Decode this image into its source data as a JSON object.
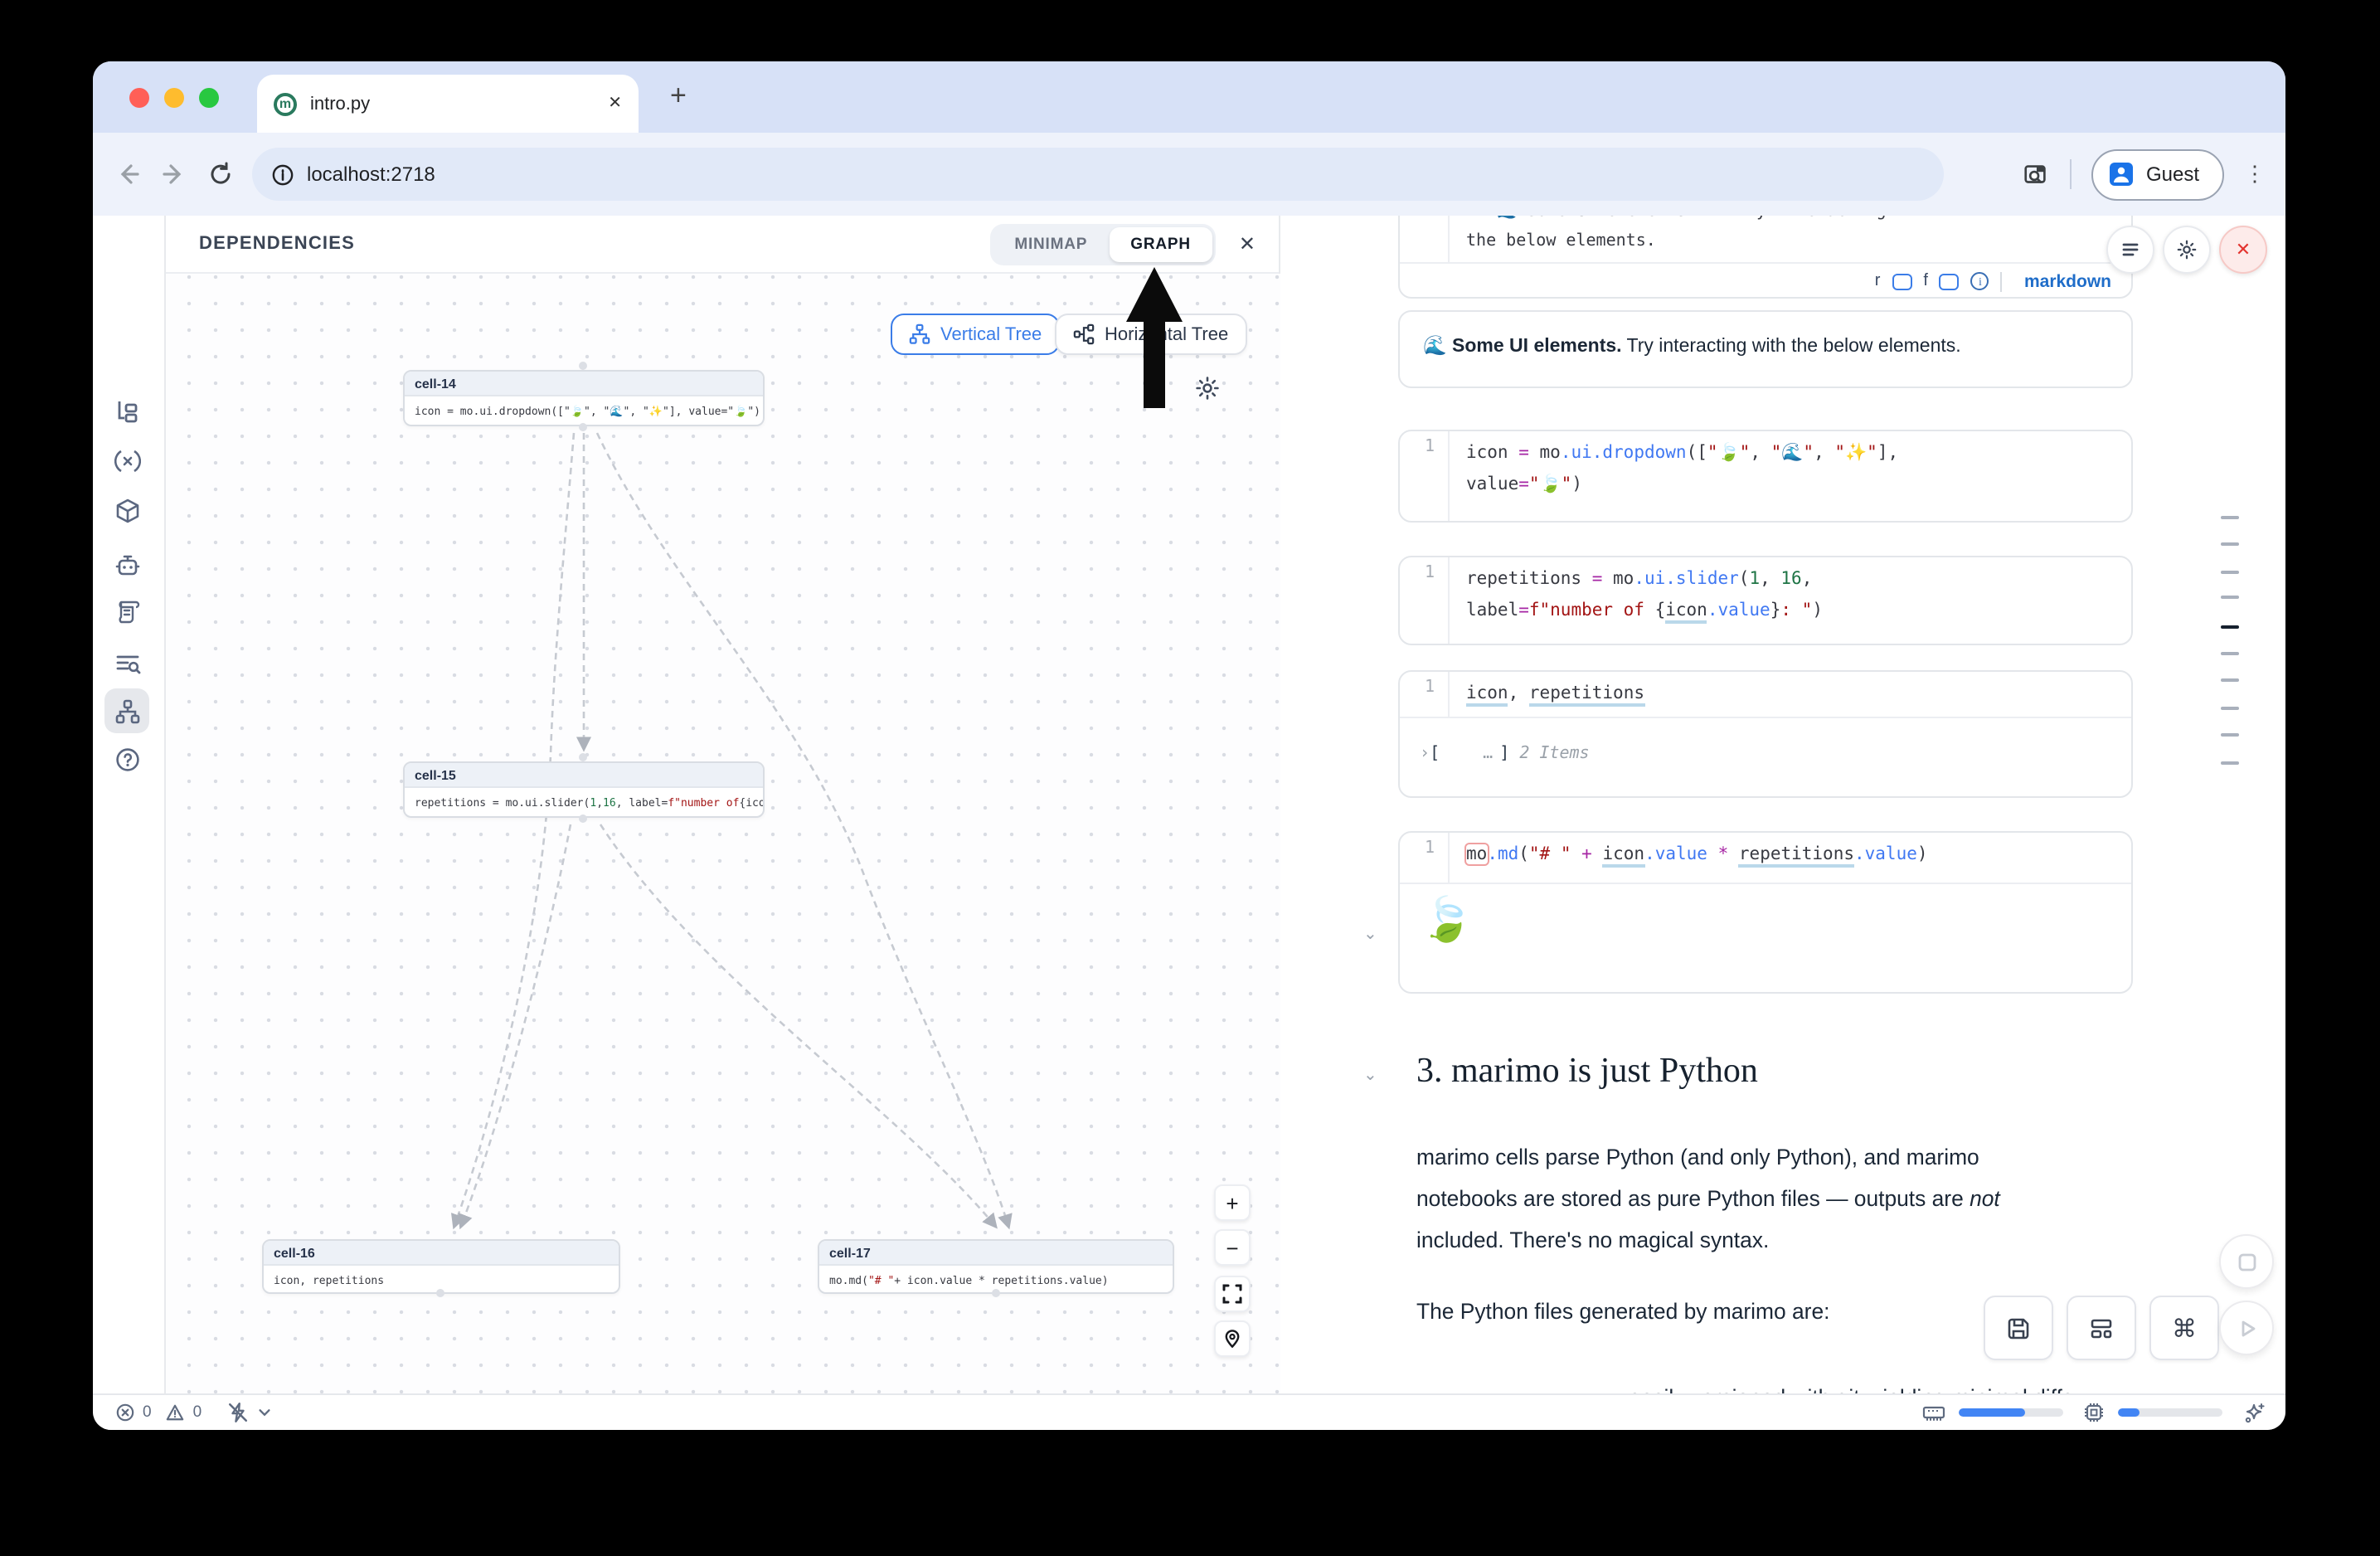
{
  "browser": {
    "tab_title": "intro.py",
    "close_tab_glyph": "✕",
    "new_tab_glyph": "+",
    "url": "localhost:2718",
    "profile_label": "Guest",
    "menu_glyph": "⋮",
    "traffic_lights": [
      "#ff5f57",
      "#febc2e",
      "#28c840"
    ]
  },
  "sidebar": {
    "items": [
      "file-explorer",
      "variables",
      "packages",
      "ai-assistant",
      "documentation",
      "table-of-contents",
      "dependency-graph",
      "help"
    ],
    "active": "dependency-graph"
  },
  "panel": {
    "title": "DEPENDENCIES",
    "tabs": [
      {
        "label": "MINIMAP",
        "active": false
      },
      {
        "label": "GRAPH",
        "active": true
      }
    ],
    "close_glyph": "✕",
    "tree_buttons": [
      {
        "label": "Vertical Tree",
        "active": true
      },
      {
        "label": "Horizontal Tree",
        "active": false
      }
    ],
    "zoom_in_glyph": "+",
    "zoom_out_glyph": "−",
    "nodes": [
      {
        "title": "cell-14",
        "code": [
          {
            "t": "p",
            "v": "icon = mo.ui.dropdown([\""
          },
          {
            "t": "str",
            "v": "🍃"
          },
          {
            "t": "p",
            "v": "\", \""
          },
          {
            "t": "str",
            "v": "🌊"
          },
          {
            "t": "p",
            "v": "\", \""
          },
          {
            "t": "str",
            "v": "✨"
          },
          {
            "t": "p",
            "v": "\"], value=\""
          },
          {
            "t": "str",
            "v": "🍃"
          },
          {
            "t": "p",
            "v": "\")"
          }
        ]
      },
      {
        "title": "cell-15",
        "code": [
          {
            "t": "p",
            "v": "repetitions = mo.ui.slider("
          },
          {
            "t": "num",
            "v": "1"
          },
          {
            "t": "p",
            "v": ", "
          },
          {
            "t": "num",
            "v": "16"
          },
          {
            "t": "p",
            "v": ", label="
          },
          {
            "t": "str",
            "v": "f\"number of "
          },
          {
            "t": "p",
            "v": "{icon.val"
          }
        ]
      },
      {
        "title": "cell-16",
        "code": [
          {
            "t": "p",
            "v": "icon, repetitions"
          }
        ]
      },
      {
        "title": "cell-17",
        "code": [
          {
            "t": "p",
            "v": "mo.md("
          },
          {
            "t": "str",
            "v": "\"# \""
          },
          {
            "t": "p",
            "v": " + icon.value * repetitions.value)"
          }
        ]
      }
    ]
  },
  "notebook": {
    "cells": [
      {
        "line_no": "1",
        "code": [
          {
            "t": "p",
            "v": "\"**🌊 Some UI elements.**\" Try interacting with"
          },
          {
            "t": "br"
          },
          {
            "t": "p",
            "v": "the below elements."
          }
        ],
        "toggle_r": "r",
        "toggle_f": "f",
        "info_glyph": "i",
        "language_badge": "markdown",
        "output_bold": "🌊 Some UI elements.",
        "output_rest": " Try interacting with the below elements."
      },
      {
        "line_no": "1",
        "code": [
          {
            "t": "p",
            "v": "icon "
          },
          {
            "t": "kw",
            "v": "="
          },
          {
            "t": "p",
            "v": " mo"
          },
          {
            "t": "fn",
            "v": ".ui"
          },
          {
            "t": "fn",
            "v": ".dropdown"
          },
          {
            "t": "p",
            "v": "(["
          },
          {
            "t": "str",
            "v": "\"🍃\""
          },
          {
            "t": "p",
            "v": ", "
          },
          {
            "t": "str",
            "v": "\"🌊\""
          },
          {
            "t": "p",
            "v": ", "
          },
          {
            "t": "str",
            "v": "\"✨\""
          },
          {
            "t": "p",
            "v": "],"
          },
          {
            "t": "br"
          },
          {
            "t": "p",
            "v": "value"
          },
          {
            "t": "kw",
            "v": "="
          },
          {
            "t": "str",
            "v": "\"🍃\""
          },
          {
            "t": "p",
            "v": ")"
          }
        ]
      },
      {
        "line_no": "1",
        "code": [
          {
            "t": "p",
            "v": "repetitions "
          },
          {
            "t": "kw",
            "v": "="
          },
          {
            "t": "p",
            "v": " mo"
          },
          {
            "t": "fn",
            "v": ".ui"
          },
          {
            "t": "fn",
            "v": ".slider"
          },
          {
            "t": "p",
            "v": "("
          },
          {
            "t": "num",
            "v": "1"
          },
          {
            "t": "p",
            "v": ", "
          },
          {
            "t": "num",
            "v": "16"
          },
          {
            "t": "p",
            "v": ","
          },
          {
            "t": "br"
          },
          {
            "t": "p",
            "v": "label"
          },
          {
            "t": "kw",
            "v": "="
          },
          {
            "t": "str",
            "v": "f\"number of "
          },
          {
            "t": "p",
            "v": "{"
          },
          {
            "t": "var",
            "v": "icon"
          },
          {
            "t": "fn",
            "v": ".value"
          },
          {
            "t": "p",
            "v": "}"
          },
          {
            "t": "str",
            "v": ": \""
          },
          {
            "t": "p",
            "v": ")"
          }
        ]
      },
      {
        "line_no": "1",
        "code": [
          {
            "t": "var",
            "v": "icon"
          },
          {
            "t": "p",
            "v": ", "
          },
          {
            "t": "var",
            "v": "repetitions"
          }
        ],
        "output_prefix": "›",
        "output_open": "[",
        "output_dots": "…",
        "output_close": "]",
        "output_label": "2 Items"
      },
      {
        "line_no": "1",
        "code": [
          {
            "t": "box",
            "v": "mo"
          },
          {
            "t": "fn",
            "v": ".md"
          },
          {
            "t": "p",
            "v": "("
          },
          {
            "t": "str",
            "v": "\"# \""
          },
          {
            "t": "p",
            "v": " "
          },
          {
            "t": "kw",
            "v": "+"
          },
          {
            "t": "p",
            "v": " "
          },
          {
            "t": "var",
            "v": "icon"
          },
          {
            "t": "fn",
            "v": ".value"
          },
          {
            "t": "p",
            "v": " "
          },
          {
            "t": "kw",
            "v": "*"
          },
          {
            "t": "p",
            "v": " "
          },
          {
            "t": "var",
            "v": "repetitions"
          },
          {
            "t": "fn",
            "v": ".value"
          },
          {
            "t": "p",
            "v": ")"
          }
        ],
        "output_emoji": "🍃"
      }
    ],
    "chevron_glyph": "⌄",
    "section": {
      "heading": "3. marimo is just Python",
      "paragraph_lines": [
        [
          {
            "t": "p",
            "v": "marimo cells parse Python (and only Python), and marimo"
          }
        ],
        [
          {
            "t": "p",
            "v": "notebooks are stored as pure Python files — outputs are "
          },
          {
            "t": "i",
            "v": "not"
          }
        ],
        [
          {
            "t": "p",
            "v": "included. There's no magical syntax."
          }
        ]
      ],
      "line2": "The Python files generated by marimo are:",
      "clipped_line": "easily versioned with git, yielding minimal diffs"
    },
    "cmd_glyph": "⌘",
    "scrollmap": {
      "tick_count": 10,
      "active_index": 4
    }
  },
  "statusbar": {
    "error_count": "0",
    "warning_count": "0",
    "ram_pct": 63,
    "cpu_pct": 20
  },
  "colors": {
    "accent_blue": "#3b7de8",
    "progress_blue": "#4285f4",
    "markdown_blue": "#1f6dc9",
    "error_red": "#e3342f",
    "tabstrip": "#d7e1f7"
  }
}
